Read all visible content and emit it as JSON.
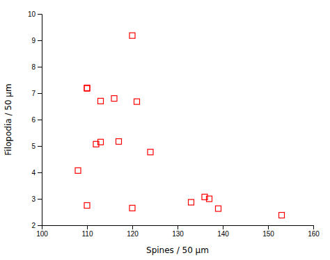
{
  "chart_data": {
    "type": "scatter",
    "x": [
      108,
      110,
      110,
      112,
      113,
      113,
      116,
      117,
      120,
      121,
      124,
      133,
      136,
      137,
      120,
      153,
      110,
      139
    ],
    "y": [
      4.07,
      7.18,
      7.2,
      5.07,
      5.15,
      6.7,
      6.8,
      5.17,
      9.18,
      6.68,
      4.77,
      2.87,
      3.07,
      3.0,
      2.65,
      2.38,
      2.75,
      2.63
    ],
    "xlabel": "Spines / 50 μm",
    "ylabel": "Filopodia / 50 μm",
    "xlim": [
      100,
      160
    ],
    "ylim": [
      2,
      10
    ],
    "xticks": [
      100,
      110,
      120,
      130,
      140,
      150,
      160
    ],
    "yticks": [
      2,
      3,
      4,
      5,
      6,
      7,
      8,
      9,
      10
    ],
    "color": "#ff0000",
    "marker": "square"
  }
}
